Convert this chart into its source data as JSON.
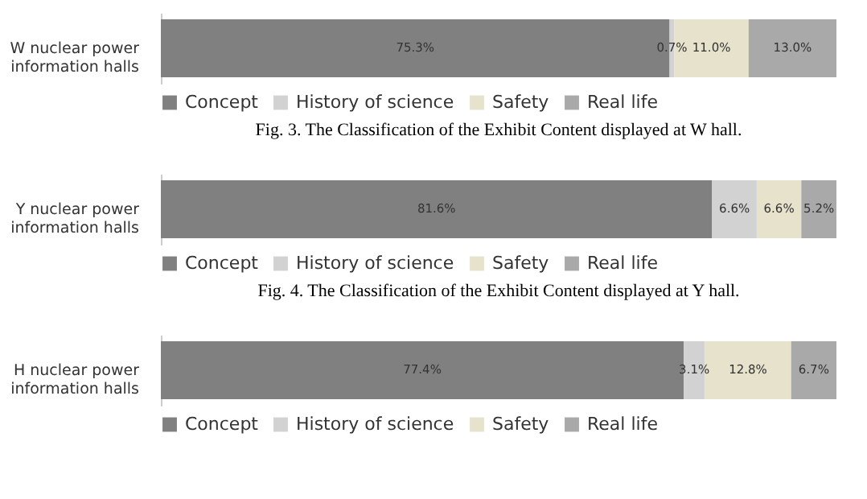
{
  "chart_data": [
    {
      "type": "bar",
      "orientation": "horizontal",
      "stacked": true,
      "title": "Fig. 3. The Classification of the Exhibit Content displayed at W hall.",
      "categories": [
        "W nuclear power information halls"
      ],
      "legend": "bottom",
      "tick_labels": "y",
      "grid": false,
      "series": [
        {
          "name": "Concept",
          "color": "#808080",
          "values": [
            75.3
          ],
          "value_labels": [
            "75.3%"
          ]
        },
        {
          "name": "History of science",
          "color": "#d2d2d2",
          "values": [
            0.7
          ],
          "value_labels": [
            "0.7%"
          ]
        },
        {
          "name": "Safety",
          "color": "#e6e2cc",
          "values": [
            11.0
          ],
          "value_labels": [
            "11.0%"
          ]
        },
        {
          "name": "Real life",
          "color": "#a9a9a9",
          "values": [
            13.0
          ],
          "value_labels": [
            "13.0%"
          ]
        }
      ]
    },
    {
      "type": "bar",
      "orientation": "horizontal",
      "stacked": true,
      "title": "Fig. 4. The Classification of the Exhibit Content displayed at Y hall.",
      "categories": [
        "Y nuclear power information halls"
      ],
      "legend": "bottom",
      "tick_labels": "y",
      "grid": false,
      "series": [
        {
          "name": "Concept",
          "color": "#808080",
          "values": [
            81.6
          ],
          "value_labels": [
            "81.6%"
          ]
        },
        {
          "name": "History of science",
          "color": "#d2d2d2",
          "values": [
            6.6
          ],
          "value_labels": [
            "6.6%"
          ]
        },
        {
          "name": "Safety",
          "color": "#e6e2cc",
          "values": [
            6.6
          ],
          "value_labels": [
            "6.6%"
          ]
        },
        {
          "name": "Real life",
          "color": "#a9a9a9",
          "values": [
            5.2
          ],
          "value_labels": [
            "5.2%"
          ]
        }
      ]
    },
    {
      "type": "bar",
      "orientation": "horizontal",
      "stacked": true,
      "categories": [
        "H nuclear power information halls"
      ],
      "legend": "bottom",
      "tick_labels": "y",
      "grid": false,
      "series": [
        {
          "name": "Concept",
          "color": "#808080",
          "values": [
            77.4
          ],
          "value_labels": [
            "77.4%"
          ]
        },
        {
          "name": "History of science",
          "color": "#d2d2d2",
          "values": [
            3.1
          ],
          "value_labels": [
            "3.1%"
          ]
        },
        {
          "name": "Safety",
          "color": "#e6e2cc",
          "values": [
            12.8
          ],
          "value_labels": [
            "12.8%"
          ]
        },
        {
          "name": "Real life",
          "color": "#a9a9a9",
          "values": [
            6.7
          ],
          "value_labels": [
            "6.7%"
          ]
        }
      ]
    }
  ]
}
